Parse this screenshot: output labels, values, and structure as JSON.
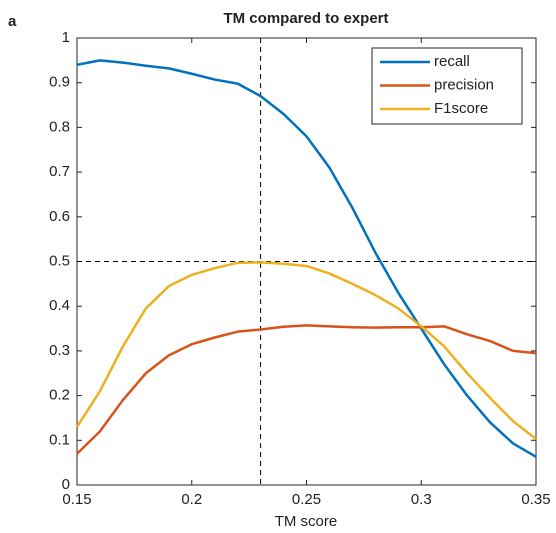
{
  "chart_data": {
    "type": "line",
    "panel_label": "a",
    "title": "TM compared to expert",
    "x_label": "TM score",
    "x": [
      0.15,
      0.16,
      0.17,
      0.18,
      0.19,
      0.2,
      0.21,
      0.22,
      0.23,
      0.24,
      0.25,
      0.26,
      0.27,
      0.28,
      0.29,
      0.3,
      0.31,
      0.32,
      0.33,
      0.34,
      0.35
    ],
    "series": [
      {
        "name": "recall",
        "color": "#0072bd",
        "values": [
          0.94,
          0.95,
          0.945,
          0.938,
          0.932,
          0.92,
          0.907,
          0.898,
          0.87,
          0.83,
          0.78,
          0.71,
          0.62,
          0.52,
          0.43,
          0.35,
          0.27,
          0.2,
          0.14,
          0.093,
          0.063
        ]
      },
      {
        "name": "precision",
        "color": "#d95319",
        "values": [
          0.07,
          0.12,
          0.19,
          0.25,
          0.29,
          0.315,
          0.33,
          0.343,
          0.348,
          0.354,
          0.357,
          0.355,
          0.353,
          0.352,
          0.353,
          0.353,
          0.355,
          0.337,
          0.322,
          0.3,
          0.295
        ]
      },
      {
        "name": "F1score",
        "color": "#edb120",
        "values": [
          0.13,
          0.21,
          0.31,
          0.395,
          0.445,
          0.47,
          0.485,
          0.497,
          0.498,
          0.495,
          0.49,
          0.473,
          0.45,
          0.425,
          0.395,
          0.355,
          0.31,
          0.25,
          0.195,
          0.143,
          0.103
        ]
      }
    ],
    "xlim": [
      0.15,
      0.35
    ],
    "xticks": [
      0.15,
      0.2,
      0.25,
      0.3,
      0.35
    ],
    "ylim": [
      0,
      1
    ],
    "yticks": [
      0,
      0.1,
      0.2,
      0.3,
      0.4,
      0.5,
      0.6,
      0.7,
      0.8,
      0.9,
      1
    ],
    "vlines": [
      0.23
    ],
    "hlines": [
      0.5
    ],
    "grid": false,
    "legend": "top-right"
  }
}
